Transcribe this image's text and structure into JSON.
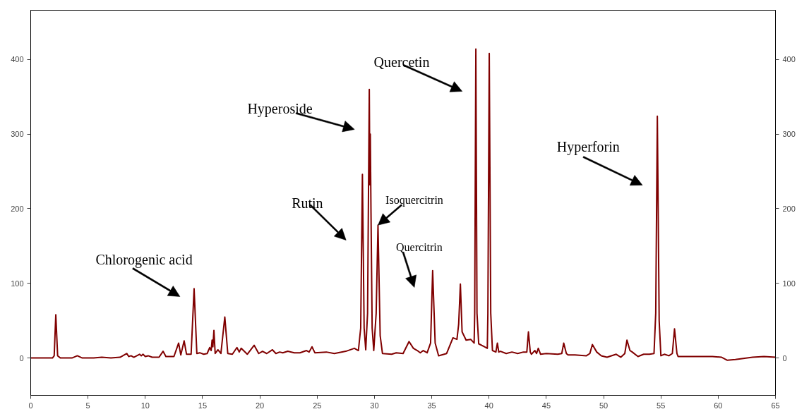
{
  "chart_data": {
    "type": "line",
    "x": [
      0,
      1.9,
      2.05,
      2.19,
      2.35,
      2.6,
      3.6,
      4.07,
      4.5,
      5.5,
      6.2,
      7,
      7.8,
      8.39,
      8.55,
      8.76,
      9.0,
      9.5,
      9.65,
      9.8,
      10.0,
      10.25,
      10.6,
      11.2,
      11.55,
      11.8,
      12.5,
      12.91,
      13.1,
      13.39,
      13.6,
      14.0,
      14.26,
      14.5,
      14.75,
      15.1,
      15.4,
      15.62,
      15.75,
      15.83,
      15.9,
      15.99,
      16.1,
      16.34,
      16.6,
      16.94,
      17.2,
      17.6,
      18.0,
      18.2,
      18.37,
      18.9,
      19.5,
      19.9,
      20.23,
      20.6,
      21.1,
      21.4,
      21.73,
      22.0,
      22.44,
      23.0,
      23.5,
      24.07,
      24.3,
      24.55,
      24.8,
      25.8,
      26.5,
      27.5,
      28.25,
      28.6,
      28.8,
      28.95,
      29.1,
      29.24,
      29.4,
      29.55,
      29.6,
      29.64,
      29.7,
      29.8,
      29.94,
      30.15,
      30.31,
      30.5,
      30.7,
      31.5,
      31.9,
      32.5,
      33.02,
      33.4,
      33.74,
      34.0,
      34.26,
      34.6,
      34.9,
      35.08,
      35.3,
      35.6,
      36.3,
      36.85,
      37.2,
      37.35,
      37.5,
      37.65,
      38.0,
      38.4,
      38.7,
      38.75,
      38.85,
      38.95,
      39.1,
      39.6,
      39.85,
      39.9,
      40.02,
      40.15,
      40.3,
      40.6,
      40.73,
      40.85,
      41.0,
      41.5,
      42.0,
      42.5,
      43.0,
      43.3,
      43.44,
      43.6,
      43.7,
      44.0,
      44.15,
      44.3,
      44.5,
      45.0,
      46.0,
      46.35,
      46.52,
      46.75,
      46.9,
      47.5,
      48.5,
      48.8,
      49.02,
      49.4,
      49.8,
      50.3,
      51.1,
      51.5,
      51.85,
      52.04,
      52.3,
      52.5,
      53.0,
      53.5,
      54.0,
      54.4,
      54.55,
      54.69,
      54.85,
      55.0,
      55.3,
      55.7,
      56.0,
      56.19,
      56.4,
      56.5,
      57.5,
      58.5,
      59.5,
      60.3,
      60.8,
      61.5,
      63.0,
      64.0,
      65.0
    ],
    "series": [
      {
        "color": "#800000",
        "values": [
          0,
          0,
          3,
          58,
          3,
          0,
          0,
          3,
          0,
          0,
          1,
          0,
          1,
          6,
          2,
          3,
          1,
          5,
          3,
          5,
          2,
          3,
          1,
          1,
          9,
          2,
          2,
          20,
          4,
          23,
          5,
          5,
          93,
          6,
          7,
          5,
          6,
          14,
          10,
          24,
          15,
          37,
          6,
          11,
          6,
          55,
          6,
          5,
          14,
          8,
          13,
          5,
          17,
          6,
          9,
          6,
          11,
          6,
          8,
          7,
          9,
          7,
          7,
          10,
          8,
          15,
          7,
          8,
          6,
          9,
          13,
          10,
          40,
          246,
          40,
          11,
          60,
          360,
          232,
          300,
          194,
          40,
          10,
          60,
          178,
          30,
          6,
          5,
          7,
          6,
          22,
          13,
          10,
          7,
          10,
          7,
          20,
          117,
          20,
          3,
          6,
          27,
          25,
          45,
          99,
          35,
          24,
          25,
          20,
          60,
          414,
          60,
          19,
          15,
          13,
          60,
          408,
          60,
          10,
          8,
          20,
          8,
          9,
          6,
          8,
          6,
          8,
          8,
          35,
          8,
          5,
          10,
          6,
          13,
          5,
          6,
          5,
          6,
          20,
          6,
          4,
          4,
          3,
          6,
          18,
          8,
          3,
          1,
          5,
          1,
          6,
          24,
          10,
          8,
          2,
          5,
          5,
          6,
          60,
          324,
          50,
          3,
          5,
          3,
          6,
          39,
          6,
          2,
          2,
          2,
          2,
          1,
          -3,
          -2,
          1,
          2,
          1
        ]
      }
    ],
    "xlim": [
      0,
      65
    ],
    "xticks": [
      0,
      5,
      10,
      15,
      20,
      25,
      30,
      35,
      40,
      45,
      50,
      55,
      60,
      65
    ],
    "ylim": [
      -50,
      466
    ],
    "yticks": [
      0,
      100,
      200,
      300,
      400
    ],
    "y2lim": [
      -50,
      466
    ],
    "y2ticks": [
      0,
      100,
      200,
      300,
      400
    ],
    "grid": false,
    "annotations": [
      "Chlorogenic acid",
      "Hyperoside",
      "Rutin",
      {
        "text": "Isoquercitrin",
        "x": 30.31,
        "y": 178
      },
      "Quercitrin",
      "Quercetin",
      "Hyperforin"
    ]
  }
}
